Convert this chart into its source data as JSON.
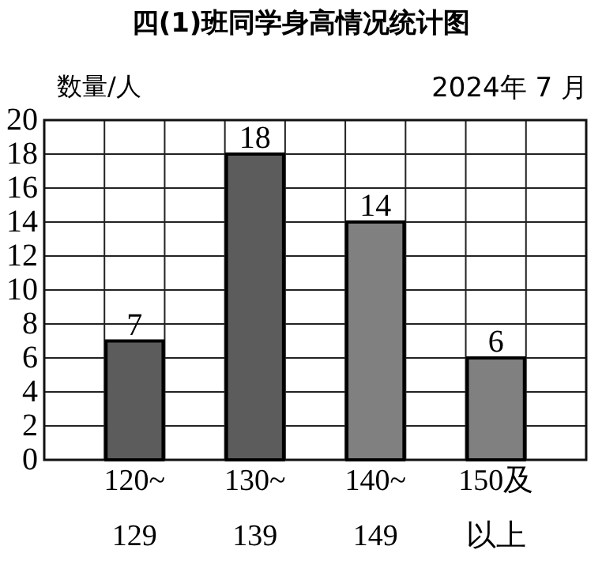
{
  "chart_data": {
    "type": "bar",
    "title": "四(1)班同学身高情况统计图",
    "ylabel": "数量/人",
    "annotations": [
      "2024年 7 月"
    ],
    "categories": [
      "120~129",
      "130~139",
      "140~149",
      "150及以上"
    ],
    "values": [
      7,
      18,
      14,
      6
    ],
    "colors": [
      "#5c5c5c",
      "#5c5c5c",
      "#808080",
      "#808080"
    ],
    "ylim": [
      0,
      20
    ],
    "yticks": [
      0,
      2,
      4,
      6,
      8,
      10,
      12,
      14,
      16,
      18,
      20
    ],
    "grid": true,
    "data_labels": true
  }
}
